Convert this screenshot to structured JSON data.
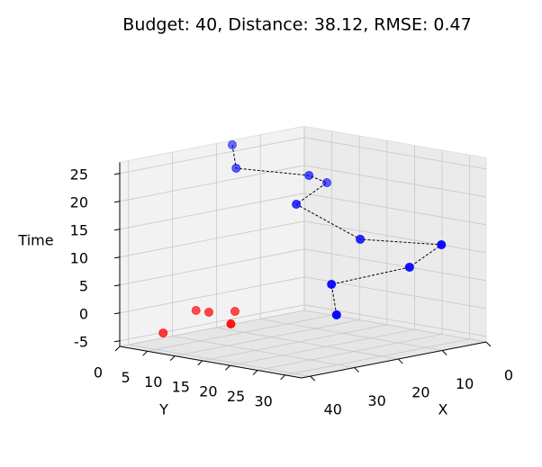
{
  "chart_data": {
    "type": "scatter3d",
    "title": "Budget: 40, Distance: 38.12, RMSE: 0.47",
    "xlabel": "X",
    "ylabel": "Y",
    "zlabel": "Time",
    "xlim": [
      0,
      42
    ],
    "ylim": [
      0,
      33
    ],
    "zlim": [
      -6,
      27
    ],
    "xticks": [
      0,
      10,
      20,
      30,
      40
    ],
    "yticks": [
      0,
      5,
      10,
      15,
      20,
      25,
      30
    ],
    "zticks": [
      -5,
      0,
      5,
      10,
      15,
      20,
      25
    ],
    "grid": true,
    "depthshade": true,
    "series": [
      {
        "color": "#0000ff",
        "connect": true,
        "linestyle": "dashed",
        "linecolor": "#000000",
        "x": [
          17.4,
          19.4,
          12.6,
          8.3,
          18.0,
          12.1,
          6.8,
          10.3,
          18.9,
          20.0
        ],
        "y": [
          0.8,
          3.1,
          10.9,
          10.7,
          12.9,
          19.8,
          30.3,
          27.3,
          20.0,
          21.8
        ],
        "z": [
          26.5,
          23,
          22,
          20,
          18,
          12,
          12,
          8,
          5,
          0
        ]
      },
      {
        "color": "#ff0000",
        "connect": false,
        "x": [
          32.5,
          25.4,
          25.1,
          21.8,
          30.0
        ],
        "y": [
          0.3,
          0.6,
          2.7,
          4.8,
          10.6
        ],
        "z": [
          -5,
          -2,
          -2,
          -2,
          -2
        ]
      }
    ]
  }
}
